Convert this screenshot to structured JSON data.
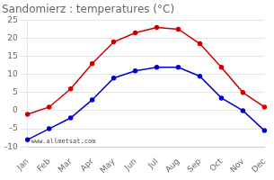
{
  "chart_data": {
    "type": "line",
    "title": "Sandomierz : temperatures (°C)",
    "categories": [
      "Jan",
      "Feb",
      "Mar",
      "Apr",
      "May",
      "Jun",
      "Jul",
      "Aug",
      "Sep",
      "Oct",
      "Nov",
      "Dec"
    ],
    "series": [
      {
        "color": "#cc0000",
        "marker": "circle",
        "values": [
          -1,
          1,
          6,
          13,
          19,
          21.5,
          23,
          22.5,
          18.5,
          12,
          5,
          1
        ]
      },
      {
        "color": "#0000cc",
        "marker": "circle",
        "values": [
          -8,
          -5,
          -2,
          3,
          9,
          11,
          12,
          12,
          9.5,
          3.5,
          0,
          -5.5
        ]
      }
    ],
    "ylim": [
      -10,
      25
    ],
    "yticks": [
      -10,
      -5,
      0,
      5,
      10,
      15,
      20,
      25
    ],
    "grid": "y",
    "annotations": [
      "www.allmetsat.com"
    ]
  }
}
